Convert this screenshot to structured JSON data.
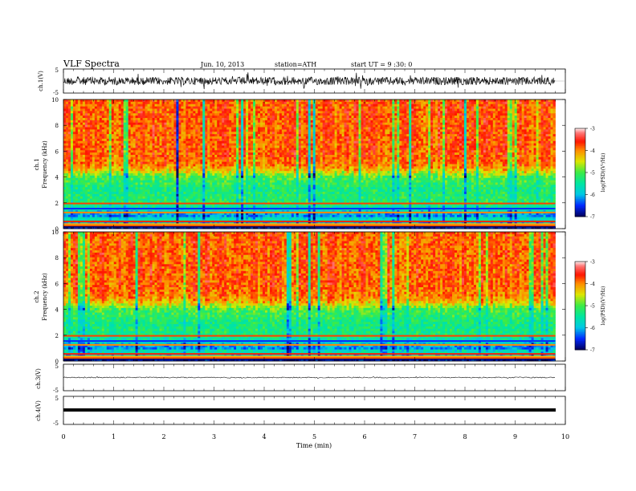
{
  "header": {
    "title": "VLF Spectra",
    "date": "Jun. 10, 2013",
    "station": "station=ATH",
    "start": "start UT =  9 :30: 0"
  },
  "chart_data": {
    "type": "heatmap",
    "time_axis": {
      "label": "Time (min)",
      "range": [
        0,
        10
      ],
      "ticks": [
        0,
        1,
        2,
        3,
        4,
        5,
        6,
        7,
        8,
        9,
        10
      ],
      "data_end_min": 9.8
    },
    "panels": [
      {
        "id": "ch1_wave",
        "type": "line",
        "ylabel": "ch.1(V)",
        "yticks": [
          "5",
          "-5"
        ],
        "ylim": [
          -5,
          5
        ],
        "description_level": "noisy broadband waveform, amplitude about ±3 V, spikes to ±4 V"
      },
      {
        "id": "ch1_spec",
        "type": "heatmap",
        "ylabel_top": "ch.1",
        "ylabel": "Frequency (kHz)",
        "ylim": [
          0,
          10
        ],
        "yticks": [
          "0",
          "2",
          "4",
          "6",
          "8",
          "10"
        ],
        "colorbar": {
          "label": "log(PSD)(V²/Hz)",
          "range": [
            -7,
            -3
          ],
          "ticks": [
            "-3",
            "-4",
            "-5",
            "-6",
            "-7"
          ]
        },
        "profile_khz_log_psd": [
          [
            0.0,
            -6.8
          ],
          [
            0.7,
            -5.5
          ],
          [
            1.0,
            -6.2
          ],
          [
            2.0,
            -5.2
          ],
          [
            3.0,
            -5.3
          ],
          [
            4.0,
            -5.0
          ],
          [
            4.5,
            -4.3
          ],
          [
            5.0,
            -3.9
          ],
          [
            6.0,
            -3.8
          ],
          [
            10.0,
            -3.8
          ]
        ]
      },
      {
        "id": "ch2_spec",
        "type": "heatmap",
        "ylabel_top": "ch.2",
        "ylabel": "Frequency (kHz)",
        "ylim": [
          0,
          10
        ],
        "yticks": [
          "0",
          "2",
          "4",
          "6",
          "8",
          "10"
        ],
        "colorbar": {
          "label": "log(PSD)(V²/Hz)",
          "range": [
            -7,
            -3
          ],
          "ticks": [
            "-3",
            "-4",
            "-5",
            "-6",
            "-7"
          ]
        },
        "profile_khz_log_psd": [
          [
            0.0,
            -6.8
          ],
          [
            0.7,
            -5.5
          ],
          [
            1.0,
            -6.2
          ],
          [
            2.0,
            -5.3
          ],
          [
            3.0,
            -5.3
          ],
          [
            4.0,
            -5.0
          ],
          [
            4.5,
            -4.3
          ],
          [
            5.0,
            -3.9
          ],
          [
            6.0,
            -3.8
          ],
          [
            10.0,
            -3.8
          ]
        ]
      },
      {
        "id": "ch3_wave",
        "type": "line",
        "ylabel": "ch.3(V)",
        "yticks": [
          "5",
          "-5"
        ],
        "ylim": [
          -5,
          5
        ],
        "description_level": "nearly flat trace near 0 V"
      },
      {
        "id": "ch4_wave",
        "type": "line",
        "ylabel": "ch.4(V)",
        "yticks": [
          "5",
          "-5"
        ],
        "ylim": [
          -5,
          5
        ],
        "description_level": "thick flat trace near 0 V"
      }
    ]
  },
  "colors": {
    "red": "#ff1a00",
    "orange": "#ff8000",
    "yellow": "#e6e600",
    "green": "#33ee55",
    "cyan": "#00dddd",
    "blue": "#0033ff",
    "darkblue": "#000066",
    "black": "#000000"
  }
}
